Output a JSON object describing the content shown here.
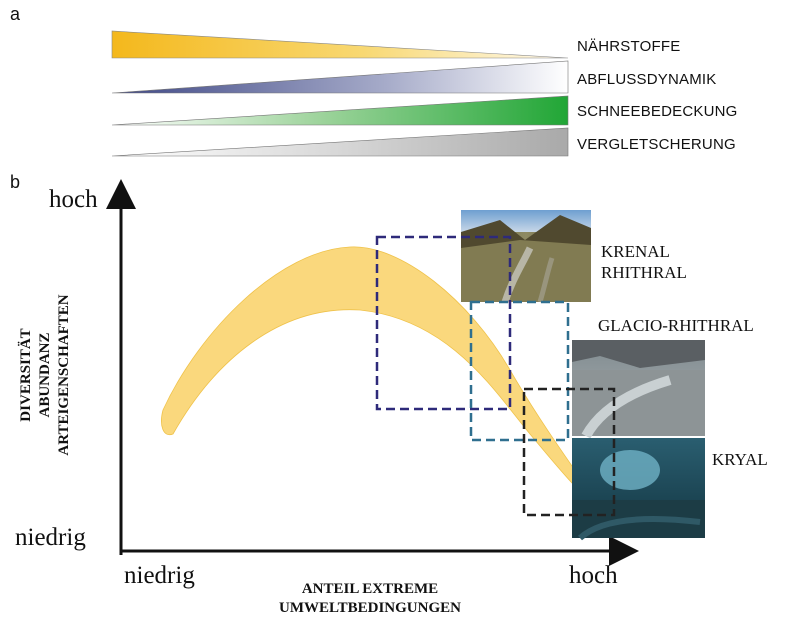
{
  "panel_a": {
    "label": "a",
    "gradients": [
      {
        "label": "NÄHRSTOFFE",
        "direction": "decreasing",
        "color": "#f5c640"
      },
      {
        "label": "ABFLUSSDYNAMIK",
        "direction": "increasing",
        "color": "#7b83ad"
      },
      {
        "label": "SCHNEEBEDECKUNG",
        "direction": "increasing",
        "color": "#2fae3f"
      },
      {
        "label": "VERGLETSCHERUNG",
        "direction": "increasing",
        "color": "#aaaaaa"
      }
    ]
  },
  "panel_b": {
    "label": "b",
    "y_high": "hoch",
    "y_low": "niedrig",
    "x_low": "niedrig",
    "x_high": "hoch",
    "ylabel_lines": [
      "DIVERSITÄT",
      "ABUNDANZ",
      "ARTEIGENSCHAFTEN"
    ],
    "xlabel_lines": [
      "ANTEIL EXTREME",
      "UMWELTBEDINGUNGEN"
    ],
    "zones": [
      {
        "name": "KRENAL",
        "color": "#2e2a7a"
      },
      {
        "name": "RHITHRAL",
        "color": "#2e2a7a"
      },
      {
        "name": "GLACIO-RHITHRAL",
        "color": "#2f6f8f"
      },
      {
        "name": "KRYAL",
        "color": "#222222"
      }
    ],
    "band_color": "#f9d060"
  }
}
